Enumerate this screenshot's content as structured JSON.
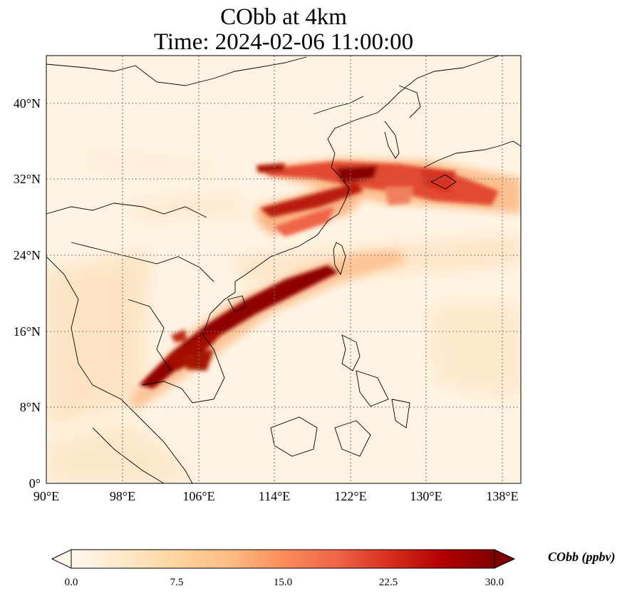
{
  "title_line1": "CObb at 4km",
  "title_line2": "Time: 2024-02-06 11:00:00",
  "map": {
    "extent": {
      "lon_min": 90,
      "lon_max": 140,
      "lat_min": 0,
      "lat_max": 45
    },
    "gridlines": "dotted",
    "lon_ticks": [
      {
        "value": 90,
        "label": "90°E"
      },
      {
        "value": 98,
        "label": "98°E"
      },
      {
        "value": 106,
        "label": "106°E"
      },
      {
        "value": 114,
        "label": "114°E"
      },
      {
        "value": 122,
        "label": "122°E"
      },
      {
        "value": 130,
        "label": "130°E"
      },
      {
        "value": 138,
        "label": "138°E"
      }
    ],
    "lat_ticks": [
      {
        "value": 0,
        "label": "0°"
      },
      {
        "value": 8,
        "label": "8°N"
      },
      {
        "value": 16,
        "label": "16°N"
      },
      {
        "value": 24,
        "label": "24°N"
      },
      {
        "value": 32,
        "label": "32°N"
      },
      {
        "value": 40,
        "label": "40°N"
      }
    ]
  },
  "colorbar": {
    "label": "CObb (ppbv)",
    "min": 0.0,
    "max": 30.0,
    "extend": "both",
    "colormap": "OrRd",
    "colors": [
      "#fff7ec",
      "#fee8c8",
      "#fdd49e",
      "#fdbb84",
      "#fc8d59",
      "#ef6548",
      "#d7301f",
      "#b30000",
      "#7f0000"
    ],
    "ticks": [
      "0.0",
      "7.5",
      "15.0",
      "22.5",
      "30.0"
    ]
  }
}
